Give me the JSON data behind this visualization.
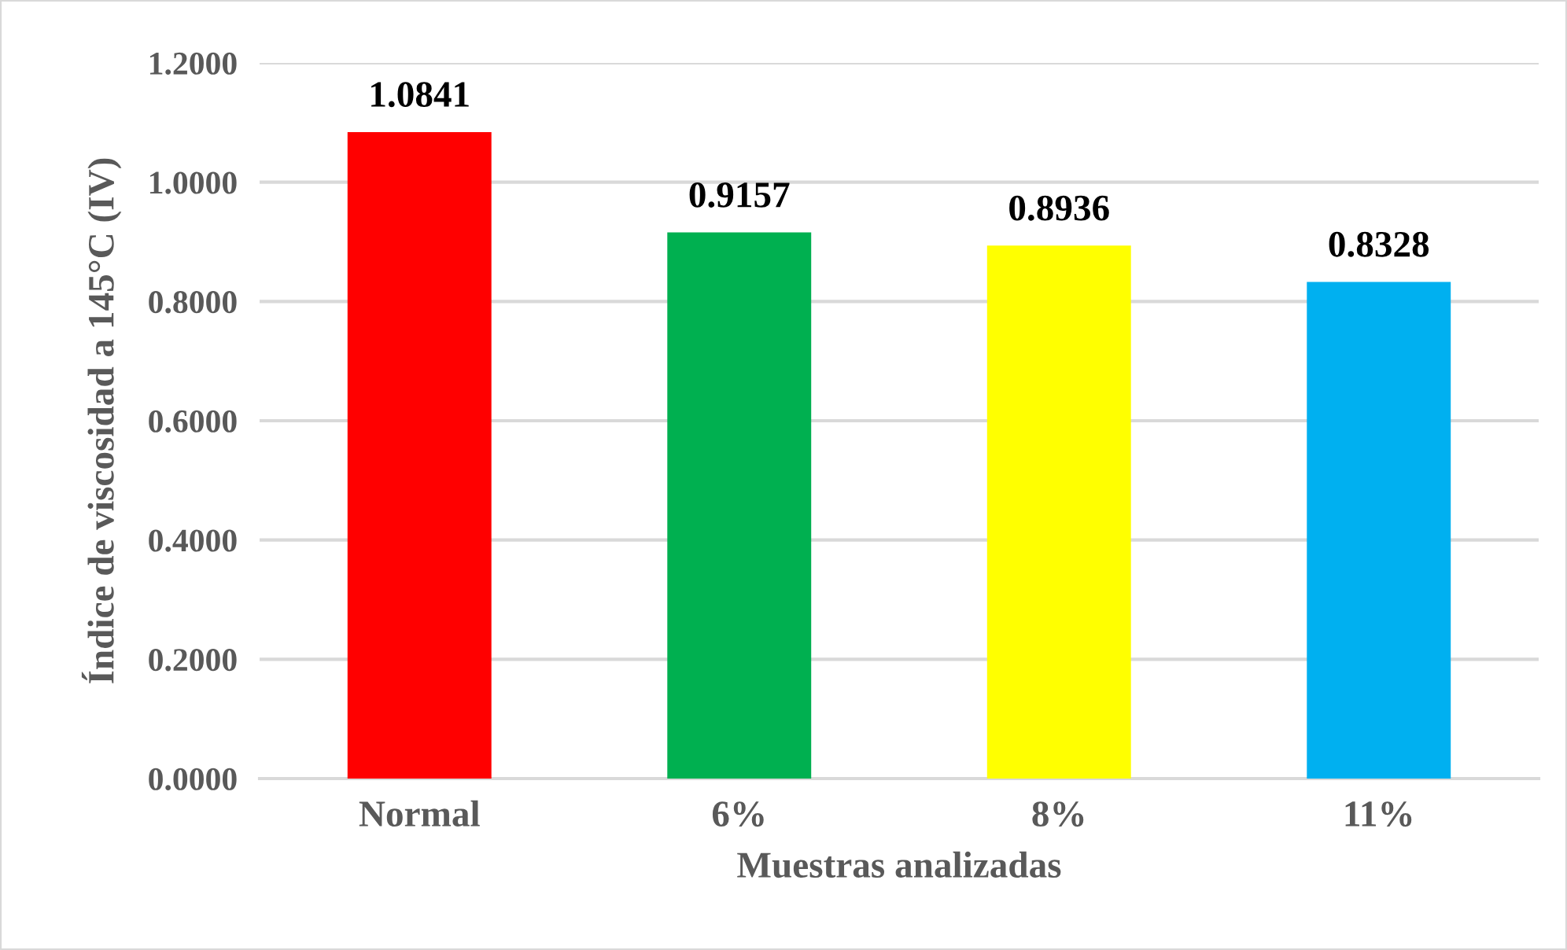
{
  "chart_data": {
    "type": "bar",
    "xlabel": "Muestras analizadas",
    "ylabel": "Índice de viscosidad a 145°C (IV)",
    "categories": [
      "Normal",
      "6%",
      "8%",
      "11%"
    ],
    "values": [
      1.0841,
      0.9157,
      0.8936,
      0.8328
    ],
    "colors": [
      "#ff0000",
      "#00b050",
      "#ffff00",
      "#00b0f0"
    ],
    "ylim": [
      0,
      1.2
    ],
    "yticks": [
      {
        "value": 0,
        "label": "0.0000"
      },
      {
        "value": 0.2,
        "label": "0.2000"
      },
      {
        "value": 0.4,
        "label": "0.4000"
      },
      {
        "value": 0.6,
        "label": "0.6000"
      },
      {
        "value": 0.8,
        "label": "0.8000"
      },
      {
        "value": 1.0,
        "label": "1.0000"
      },
      {
        "value": 1.2,
        "label": "1.2000"
      }
    ],
    "grid": "y",
    "data_labels": true,
    "legend": false
  }
}
